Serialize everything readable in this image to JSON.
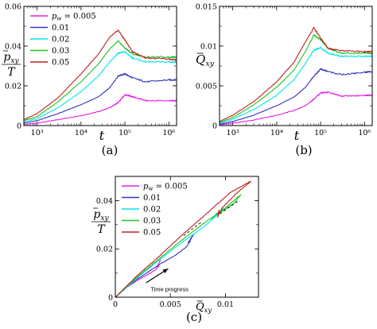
{
  "figure": {
    "captions": [
      "(a)",
      "(b)",
      "(c)"
    ]
  },
  "chart_data": [
    {
      "type": "line",
      "panel": "(a)",
      "xlabel": "t",
      "ylabel": "p̄_xy / T",
      "xscale": "log",
      "xlim": [
        500,
        1500000
      ],
      "ylim": [
        0,
        0.06
      ],
      "xticks": [
        1000,
        10000,
        100000,
        1000000
      ],
      "xtick_labels": [
        "10³",
        "10⁴",
        "10⁵",
        "10⁶"
      ],
      "yticks": [
        0,
        0.02,
        0.04,
        0.06
      ],
      "ytick_labels": [
        "0",
        "0.02",
        "0.04",
        "0.06"
      ],
      "legend": {
        "placement": "top-left",
        "title_prefix": "p_w = "
      },
      "series": [
        {
          "name": "0.005",
          "color": "#e020e0",
          "x": [
            500,
            1000,
            3000,
            10000,
            25000,
            45000,
            70000,
            100000,
            150000,
            300000,
            1000000,
            1500000
          ],
          "y": [
            0.0006,
            0.0012,
            0.003,
            0.005,
            0.007,
            0.009,
            0.0115,
            0.0155,
            0.0145,
            0.0125,
            0.0125,
            0.0125
          ]
        },
        {
          "name": "0.01",
          "color": "#3535c0",
          "x": [
            500,
            1000,
            3000,
            10000,
            25000,
            45000,
            70000,
            100000,
            150000,
            300000,
            1000000,
            1500000
          ],
          "y": [
            0.0012,
            0.0025,
            0.006,
            0.0105,
            0.0145,
            0.019,
            0.025,
            0.026,
            0.024,
            0.022,
            0.023,
            0.023
          ]
        },
        {
          "name": "0.02",
          "color": "#00e6e6",
          "x": [
            500,
            1000,
            3000,
            10000,
            25000,
            45000,
            70000,
            100000,
            150000,
            300000,
            1000000,
            1500000
          ],
          "y": [
            0.0018,
            0.0035,
            0.009,
            0.017,
            0.025,
            0.032,
            0.0365,
            0.037,
            0.034,
            0.032,
            0.032,
            0.032
          ]
        },
        {
          "name": "0.03",
          "color": "#20c020",
          "x": [
            500,
            1000,
            3000,
            10000,
            25000,
            45000,
            70000,
            100000,
            150000,
            300000,
            1000000,
            1500000
          ],
          "y": [
            0.0025,
            0.0045,
            0.012,
            0.022,
            0.031,
            0.0385,
            0.0425,
            0.039,
            0.036,
            0.0345,
            0.0345,
            0.0345
          ]
        },
        {
          "name": "0.05",
          "color": "#c02020",
          "x": [
            500,
            1000,
            3000,
            10000,
            25000,
            45000,
            70000,
            100000,
            150000,
            300000,
            1000000,
            1500000
          ],
          "y": [
            0.003,
            0.006,
            0.014,
            0.026,
            0.036,
            0.0445,
            0.048,
            0.043,
            0.037,
            0.034,
            0.0335,
            0.033
          ]
        }
      ]
    },
    {
      "type": "line",
      "panel": "(b)",
      "xlabel": "t",
      "ylabel": "Q̄_xy",
      "xscale": "log",
      "xlim": [
        500,
        1500000
      ],
      "ylim": [
        0,
        0.015
      ],
      "xticks": [
        1000,
        10000,
        100000,
        1000000
      ],
      "xtick_labels": [
        "10³",
        "10⁴",
        "10⁵",
        "10⁶"
      ],
      "yticks": [
        0,
        0.005,
        0.01,
        0.015
      ],
      "ytick_labels": [
        "0",
        "0.005",
        "0.01",
        "0.015"
      ],
      "series": [
        {
          "name": "0.005",
          "color": "#e020e0",
          "x": [
            500,
            1000,
            3000,
            10000,
            25000,
            45000,
            70000,
            100000,
            150000,
            300000,
            1000000,
            1500000
          ],
          "y": [
            0.0001,
            0.0003,
            0.0007,
            0.0013,
            0.0019,
            0.0025,
            0.0033,
            0.0041,
            0.0042,
            0.0037,
            0.0038,
            0.0038
          ]
        },
        {
          "name": "0.01",
          "color": "#3535c0",
          "x": [
            500,
            1000,
            3000,
            10000,
            25000,
            45000,
            70000,
            100000,
            150000,
            300000,
            1000000,
            1500000
          ],
          "y": [
            0.0002,
            0.0005,
            0.0013,
            0.0025,
            0.0036,
            0.0048,
            0.0062,
            0.0071,
            0.0068,
            0.0064,
            0.0067,
            0.0068
          ]
        },
        {
          "name": "0.02",
          "color": "#00e6e6",
          "x": [
            500,
            1000,
            3000,
            10000,
            25000,
            45000,
            70000,
            100000,
            150000,
            300000,
            1000000,
            1500000
          ],
          "y": [
            0.0003,
            0.0008,
            0.002,
            0.0038,
            0.0058,
            0.0078,
            0.0095,
            0.0098,
            0.0091,
            0.0087,
            0.0087,
            0.0087
          ]
        },
        {
          "name": "0.03",
          "color": "#20c020",
          "x": [
            500,
            1000,
            3000,
            10000,
            25000,
            45000,
            70000,
            100000,
            150000,
            300000,
            1000000,
            1500000
          ],
          "y": [
            0.0004,
            0.001,
            0.0026,
            0.0048,
            0.007,
            0.0093,
            0.0114,
            0.0108,
            0.0097,
            0.0091,
            0.0091,
            0.0091
          ]
        },
        {
          "name": "0.05",
          "color": "#c02020",
          "x": [
            500,
            1000,
            3000,
            10000,
            25000,
            45000,
            70000,
            100000,
            150000,
            300000,
            1000000,
            1500000
          ],
          "y": [
            0.0005,
            0.0013,
            0.003,
            0.0055,
            0.008,
            0.0105,
            0.0123,
            0.011,
            0.0097,
            0.0094,
            0.0093,
            0.0093
          ]
        }
      ]
    },
    {
      "type": "line",
      "panel": "(c)",
      "xlabel": "Q̄_xy",
      "ylabel": "p̄_xy / T",
      "xlim": [
        0,
        0.013
      ],
      "ylim": [
        0,
        0.05
      ],
      "xticks": [
        0,
        0.005,
        0.01
      ],
      "xtick_labels": [
        "0",
        "0.005",
        "0.01"
      ],
      "yticks": [
        0,
        0.02,
        0.04
      ],
      "ytick_labels": [
        "0",
        "0.02",
        "0.04"
      ],
      "legend": {
        "placement": "top-left",
        "title_prefix": "p_w = "
      },
      "annotation": "Time progress",
      "series": [
        {
          "name": "0.005",
          "color": "#e020e0",
          "x": [
            0,
            0.001,
            0.002,
            0.003,
            0.0037,
            0.0041,
            0.0038,
            0.004
          ],
          "y": [
            0,
            0.004,
            0.007,
            0.0095,
            0.0115,
            0.0155,
            0.0125,
            0.0128
          ]
        },
        {
          "name": "0.01",
          "color": "#3535c0",
          "x": [
            0,
            0.001,
            0.002,
            0.003,
            0.004,
            0.0055,
            0.0065,
            0.0071,
            0.0066,
            0.0068
          ],
          "y": [
            0,
            0.004,
            0.0075,
            0.0105,
            0.0135,
            0.0175,
            0.021,
            0.026,
            0.0225,
            0.023
          ]
        },
        {
          "name": "0.02",
          "color": "#00e6e6",
          "x": [
            0,
            0.002,
            0.004,
            0.006,
            0.008,
            0.0095,
            0.0098,
            0.0089,
            0.0087
          ],
          "y": [
            0,
            0.008,
            0.0155,
            0.0225,
            0.029,
            0.035,
            0.037,
            0.033,
            0.032
          ]
        },
        {
          "name": "0.03",
          "color": "#20c020",
          "x": [
            0,
            0.002,
            0.004,
            0.006,
            0.008,
            0.01,
            0.0114,
            0.0108,
            0.0095,
            0.0091
          ],
          "y": [
            0,
            0.0085,
            0.016,
            0.0235,
            0.0305,
            0.037,
            0.0425,
            0.039,
            0.035,
            0.0345
          ]
        },
        {
          "name": "0.05",
          "color": "#c02020",
          "x": [
            0,
            0.002,
            0.004,
            0.006,
            0.008,
            0.0105,
            0.0123,
            0.011,
            0.0097,
            0.0093,
            0.0094,
            0.0093
          ],
          "y": [
            0,
            0.009,
            0.017,
            0.0255,
            0.0335,
            0.0435,
            0.048,
            0.043,
            0.037,
            0.0335,
            0.036,
            0.033
          ]
        }
      ]
    }
  ]
}
